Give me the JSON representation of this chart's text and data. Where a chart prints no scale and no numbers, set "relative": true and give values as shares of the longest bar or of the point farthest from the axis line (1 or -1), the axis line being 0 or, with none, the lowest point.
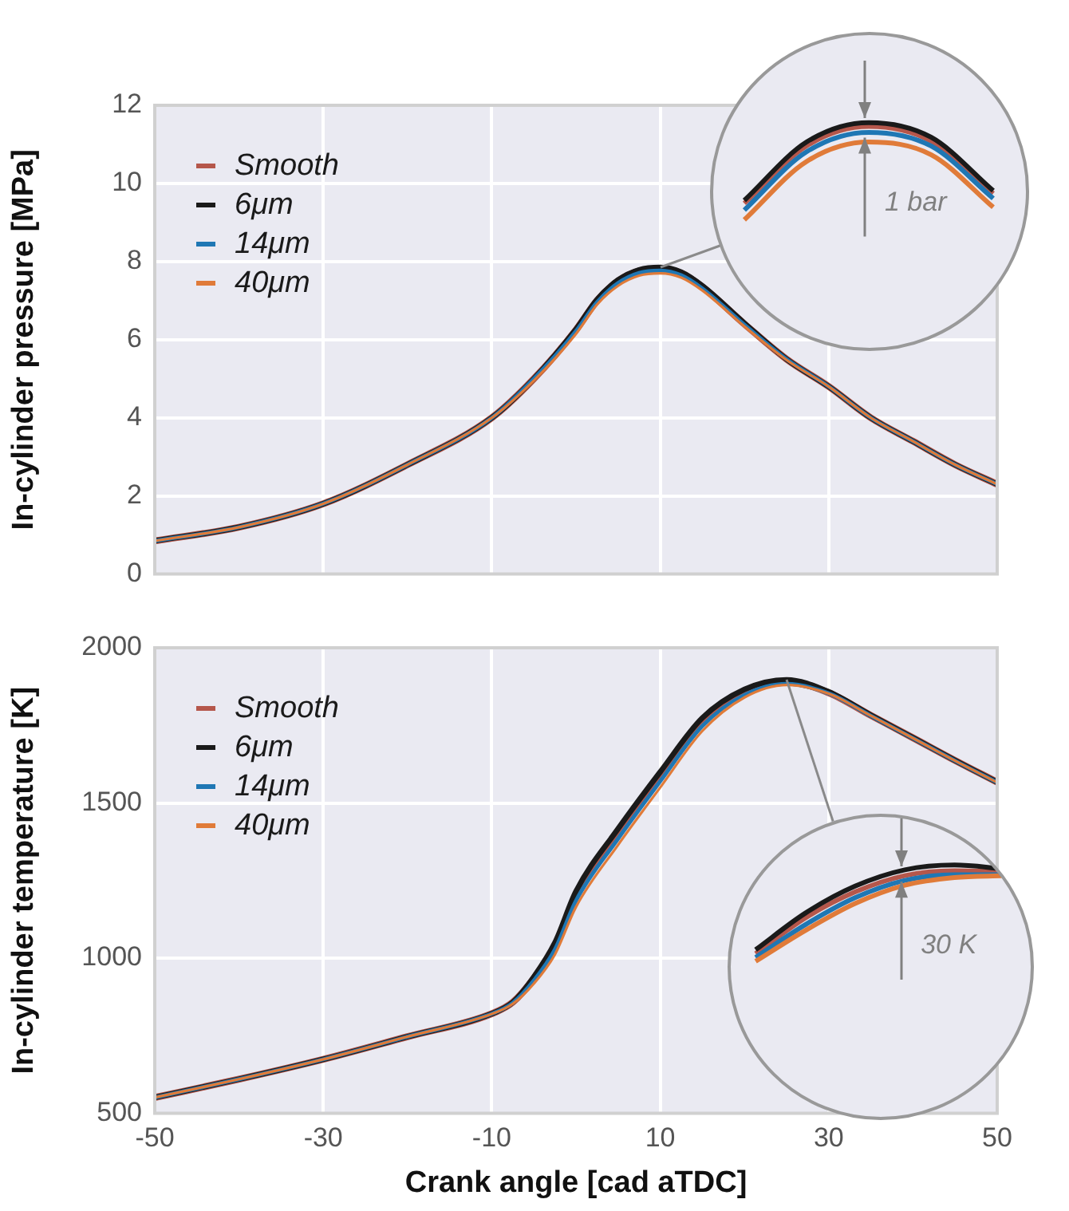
{
  "chart_data": [
    {
      "type": "line",
      "ylabel": "In-cylinder pressure [MPa]",
      "x": [
        -50,
        -40,
        -30,
        -20,
        -10,
        -5,
        0,
        2.5,
        5,
        7.5,
        10,
        12.5,
        15,
        20,
        25,
        30,
        35,
        40,
        45,
        50
      ],
      "xlim": [
        -50,
        50
      ],
      "xticks": [
        -50,
        -30,
        -10,
        10,
        30,
        50
      ],
      "ylim": [
        0,
        12
      ],
      "yticks": [
        0,
        2,
        4,
        6,
        8,
        10,
        12
      ],
      "grid": true,
      "legend": "top left",
      "tick_labels": "y",
      "series": [
        {
          "name": "Smooth",
          "color": "#b5574b",
          "values": [
            0.85,
            1.2,
            1.8,
            2.8,
            4.0,
            5.0,
            6.25,
            7.0,
            7.5,
            7.76,
            7.82,
            7.7,
            7.35,
            6.4,
            5.5,
            4.8,
            4.0,
            3.4,
            2.8,
            2.3
          ]
        },
        {
          "name": "6μm",
          "color": "#1a1a1a",
          "values": [
            0.85,
            1.2,
            1.8,
            2.8,
            4.0,
            5.0,
            6.27,
            7.03,
            7.53,
            7.79,
            7.85,
            7.73,
            7.38,
            6.42,
            5.5,
            4.8,
            4.0,
            3.4,
            2.8,
            2.3
          ]
        },
        {
          "name": "14μm",
          "color": "#1f77b4",
          "values": [
            0.85,
            1.2,
            1.8,
            2.8,
            4.0,
            5.0,
            6.22,
            6.96,
            7.45,
            7.71,
            7.77,
            7.65,
            7.31,
            6.38,
            5.5,
            4.8,
            4.0,
            3.4,
            2.8,
            2.3
          ]
        },
        {
          "name": "40μm",
          "color": "#e07b39",
          "values": [
            0.85,
            1.2,
            1.8,
            2.8,
            4.0,
            4.95,
            6.15,
            6.9,
            7.38,
            7.64,
            7.7,
            7.59,
            7.26,
            6.34,
            5.48,
            4.8,
            4.0,
            3.4,
            2.8,
            2.3
          ]
        }
      ]
    },
    {
      "type": "line",
      "xlabel": "Crank angle [cad aTDC]",
      "ylabel": "In-cylinder temperature [K]",
      "x": [
        -50,
        -40,
        -30,
        -20,
        -10,
        -7.5,
        -5,
        -2.5,
        0,
        5,
        10,
        15,
        20,
        25,
        30,
        35,
        40,
        45,
        50
      ],
      "xlim": [
        -50,
        50
      ],
      "xticks": [
        -50,
        -30,
        -10,
        10,
        30,
        50
      ],
      "ylim": [
        500,
        2000
      ],
      "yticks": [
        500,
        1000,
        1500,
        2000
      ],
      "grid": true,
      "legend": "top left",
      "series": [
        {
          "name": "Smooth",
          "color": "#b5574b",
          "values": [
            551,
            610,
            674,
            747,
            821,
            858,
            935,
            1040,
            1200,
            1400,
            1585,
            1760,
            1855,
            1890,
            1855,
            1782,
            1710,
            1637,
            1567
          ]
        },
        {
          "name": "6μm",
          "color": "#1a1a1a",
          "values": [
            551,
            610,
            674,
            747,
            821,
            858,
            940,
            1050,
            1215,
            1417,
            1600,
            1774,
            1866,
            1897,
            1858,
            1783,
            1710,
            1637,
            1567
          ]
        },
        {
          "name": "14μm",
          "color": "#1f77b4",
          "values": [
            551,
            610,
            674,
            747,
            821,
            856,
            928,
            1028,
            1185,
            1385,
            1570,
            1748,
            1848,
            1884,
            1853,
            1781,
            1709,
            1636,
            1566
          ]
        },
        {
          "name": "40μm",
          "color": "#e07b39",
          "values": [
            551,
            610,
            674,
            747,
            820,
            853,
            918,
            1012,
            1165,
            1365,
            1550,
            1732,
            1840,
            1880,
            1852,
            1781,
            1709,
            1636,
            1566
          ]
        }
      ]
    },
    {
      "type": "line",
      "relative": true,
      "categories": [
        null,
        null,
        null,
        null,
        null
      ],
      "annotations": [
        "1 bar"
      ],
      "series": [
        {
          "color": "#b5574b",
          "values": [
            0.17,
            0.76,
            0.96,
            0.81,
            0.27
          ]
        },
        {
          "color": "#1a1a1a",
          "values": [
            0.2,
            0.8,
            1,
            0.85,
            0.3
          ]
        },
        {
          "color": "#1f77b4",
          "values": [
            0.1,
            0.7,
            0.9,
            0.76,
            0.22
          ]
        },
        {
          "color": "#e07b39",
          "values": [
            0,
            0.6,
            0.8,
            0.67,
            0.13
          ]
        }
      ]
    },
    {
      "type": "line",
      "relative": true,
      "categories": [
        null,
        null,
        null,
        null,
        null,
        null
      ],
      "annotations": [
        "30 K"
      ],
      "series": [
        {
          "color": "#b5574b",
          "values": [
            0.08,
            0.45,
            0.72,
            0.89,
            0.94,
            0.93
          ]
        },
        {
          "color": "#1a1a1a",
          "values": [
            0.12,
            0.5,
            0.78,
            0.95,
            1,
            0.96
          ]
        },
        {
          "color": "#1f77b4",
          "values": [
            0.04,
            0.38,
            0.66,
            0.84,
            0.9,
            0.9
          ]
        },
        {
          "color": "#e07b39",
          "values": [
            0,
            0.32,
            0.6,
            0.79,
            0.87,
            0.89
          ]
        }
      ]
    }
  ]
}
